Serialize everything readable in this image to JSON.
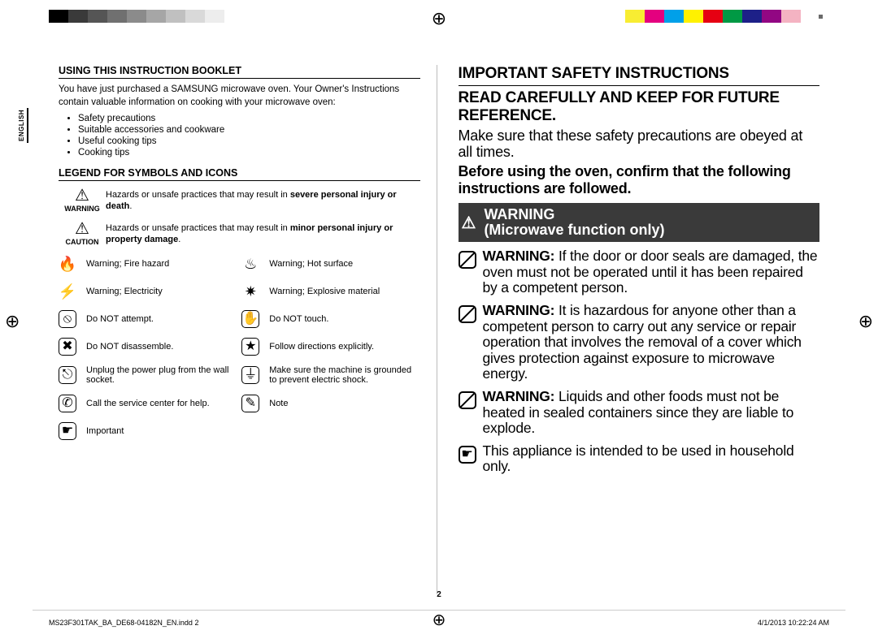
{
  "colorbar_left": [
    "#000000",
    "#3a3a3a",
    "#555555",
    "#707070",
    "#8b8b8b",
    "#a6a6a6",
    "#c0c0c0",
    "#d9d9d9",
    "#ededed",
    "#ffffff"
  ],
  "colorbar_right": [
    "#ffffff",
    "#f8ed32",
    "#e4007f",
    "#00a0e9",
    "#fff100",
    "#e60012",
    "#009944",
    "#1d2088",
    "#920783",
    "#f4b3c2"
  ],
  "side_lang": "ENGLISH",
  "pagenum": "2",
  "footer_left": "MS23F301TAK_BA_DE68-04182N_EN.indd   2",
  "footer_right": "4/1/2013   10:22:24 AM",
  "left": {
    "h1": "Using this instruction booklet",
    "intro": "You have just purchased a SAMSUNG microwave oven. Your Owner's Instructions contain valuable information on cooking with your microwave oven:",
    "bullets": [
      "Safety precautions",
      "Suitable accessories and cookware",
      "Useful cooking tips",
      "Cooking tips"
    ],
    "h2": "Legend for symbols and icons",
    "haz1_label": "WARNING",
    "haz1_text_a": "Hazards or unsafe practices that may result in ",
    "haz1_text_b": "severe personal injury or death",
    "haz2_label": "CAUTION",
    "haz2_text_a": "Hazards or unsafe practices that may result in ",
    "haz2_text_b": "minor personal injury or property damage",
    "grid": [
      [
        "🔥",
        "Warning; Fire hazard",
        "♨",
        "Warning; Hot surface"
      ],
      [
        "⚡",
        "Warning; Electricity",
        "✷",
        "Warning; Explosive material"
      ],
      [
        "⦸",
        "Do NOT attempt.",
        "✋",
        "Do NOT touch."
      ],
      [
        "✖",
        "Do NOT disassemble.",
        "★",
        "Follow directions explicitly."
      ],
      [
        "⎋",
        "Unplug the power plug from the wall socket.",
        "⏚",
        "Make sure the machine is grounded to prevent electric shock."
      ],
      [
        "✆",
        "Call the service center for help.",
        "✎",
        "Note"
      ],
      [
        "☛",
        "Important",
        "",
        ""
      ]
    ]
  },
  "right": {
    "h1": "IMPORTANT SAFETY INSTRUCTIONS",
    "h2": "READ CAREFULLY AND KEEP FOR FUTURE REFERENCE.",
    "p1": "Make sure that these safety precautions are obeyed at all times.",
    "p2": "Before using the oven, confirm that the following instructions are followed.",
    "bar_line1": "WARNING",
    "bar_line2": "(Microwave function only)",
    "w1_b": "WARNING: ",
    "w1_t": "If the door or door seals are damaged, the oven must not be operated until it has been repaired by a competent person.",
    "w2_b": "WARNING: ",
    "w2_t": "It is hazardous for anyone other than a competent person to carry out any service or repair operation that involves the removal of a cover which gives protection against exposure to microwave energy.",
    "w3_b": "WARNING: ",
    "w3_t": "Liquids and other foods must not be heated in sealed containers since they are liable to explode.",
    "w4_t": "This appliance is intended to be used in household only."
  }
}
